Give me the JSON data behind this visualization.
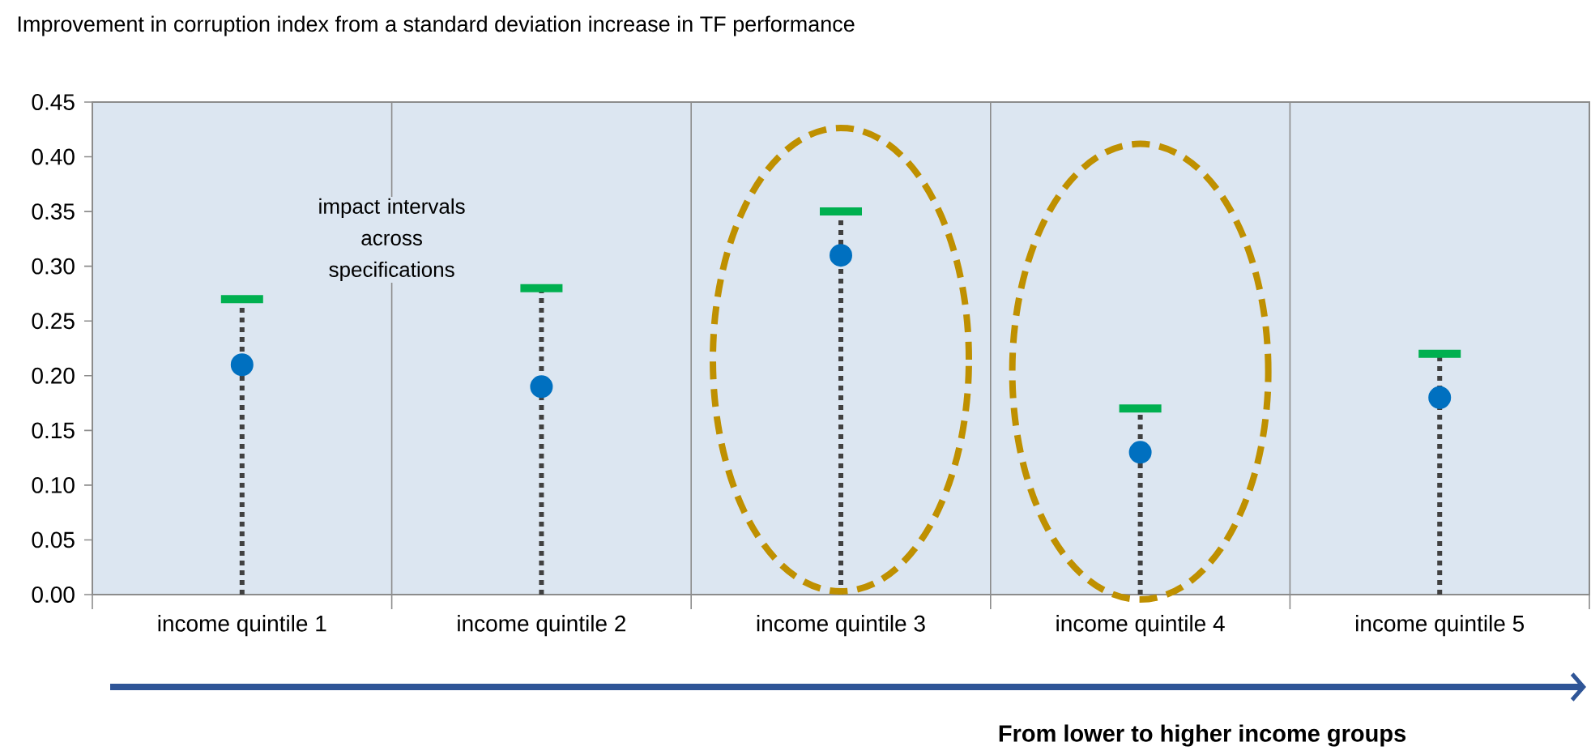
{
  "chart_data": {
    "type": "scatter",
    "title": "Improvement in corruption index from a standard deviation increase in TF performance",
    "xlabel": "From lower to higher income groups",
    "annotations": [
      "impact intervals across specifications"
    ],
    "categories": [
      "income quintile 1",
      "income quintile 2",
      "income quintile 3",
      "income quintile 4",
      "income quintile 5"
    ],
    "series": [
      {
        "color": "#0070c0",
        "values": [
          0.21,
          0.19,
          0.31,
          0.13,
          0.18
        ],
        "errors": [
          [
            0,
            0.27
          ],
          [
            0,
            0.28
          ],
          [
            0,
            0.35
          ],
          [
            0,
            0.17
          ],
          [
            0,
            0.22
          ]
        ]
      }
    ],
    "ylim": [
      0,
      0.45
    ],
    "yticks": [
      {
        "value": 0,
        "label": "0.00"
      },
      {
        "value": 0.05,
        "label": "0.05"
      },
      {
        "value": 0.1,
        "label": "0.10"
      },
      {
        "value": 0.15,
        "label": "0.15"
      },
      {
        "value": 0.2,
        "label": "0.20"
      },
      {
        "value": 0.25,
        "label": "0.25"
      },
      {
        "value": 0.3,
        "label": "0.30"
      },
      {
        "value": 0.35,
        "label": "0.35"
      },
      {
        "value": 0.4,
        "label": "0.40"
      },
      {
        "value": 0.45,
        "label": "0.45"
      }
    ],
    "grid": "x",
    "marker": "circle"
  }
}
